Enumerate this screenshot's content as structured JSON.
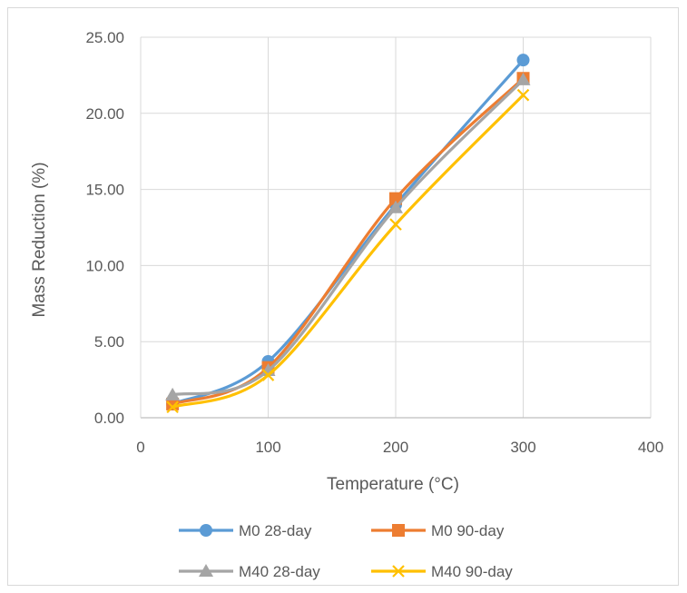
{
  "chart_data": {
    "type": "line",
    "title": "",
    "xlabel": "Temperature (°C)",
    "ylabel": "Mass Reduction (%)",
    "xlim": [
      0,
      400
    ],
    "ylim": [
      0,
      25
    ],
    "xticks": [
      "0",
      "100",
      "200",
      "300",
      "400"
    ],
    "yticks": [
      "0.00",
      "5.00",
      "10.00",
      "15.00",
      "20.00",
      "25.00"
    ],
    "x": [
      25,
      100,
      200,
      300
    ],
    "grid": true,
    "legend_position": "bottom",
    "series": [
      {
        "name": "M0 28-day",
        "values": [
          0.9,
          3.7,
          14.0,
          23.5
        ],
        "color": "#5b9bd5",
        "marker": "circle"
      },
      {
        "name": "M0 90-day",
        "values": [
          0.9,
          3.3,
          14.4,
          22.3
        ],
        "color": "#ed7d31",
        "marker": "square"
      },
      {
        "name": "M40 28-day",
        "values": [
          1.5,
          3.1,
          13.8,
          22.2
        ],
        "color": "#a5a5a5",
        "marker": "triangle"
      },
      {
        "name": "M40 90-day",
        "values": [
          0.7,
          2.8,
          12.7,
          21.2
        ],
        "color": "#ffc000",
        "marker": "x"
      }
    ]
  }
}
